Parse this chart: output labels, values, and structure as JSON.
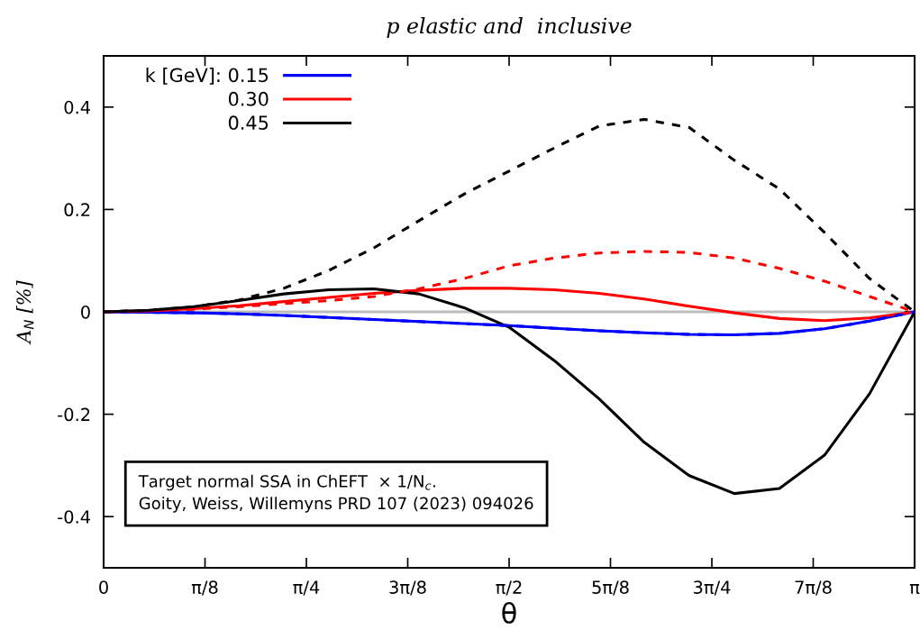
{
  "chart_data": {
    "type": "line",
    "title": "p elastic and  inclusive",
    "xlabel": "θ",
    "ylabel": "A$_{N}$ [%]",
    "x": [
      0,
      0.1745,
      0.3491,
      0.5236,
      0.6981,
      0.8727,
      1.0472,
      1.2217,
      1.3963,
      1.5708,
      1.7453,
      1.9199,
      2.0944,
      2.2689,
      2.4435,
      2.618,
      2.7925,
      2.9671,
      3.1416
    ],
    "series": [
      {
        "name": "k [GeV]: 0.15",
        "color": "#0000ff",
        "line_style": "solid",
        "values": [
          0,
          -0.001,
          -0.002,
          -0.004,
          -0.007,
          -0.011,
          -0.015,
          -0.019,
          -0.023,
          -0.027,
          -0.032,
          -0.037,
          -0.041,
          -0.044,
          -0.045,
          -0.042,
          -0.033,
          -0.018,
          0
        ]
      },
      {
        "name": "0.30",
        "color": "#ff0000",
        "line_style": "solid",
        "values": [
          0,
          0.002,
          0.006,
          0.012,
          0.02,
          0.028,
          0.036,
          0.042,
          0.046,
          0.046,
          0.043,
          0.036,
          0.025,
          0.011,
          -0.002,
          -0.013,
          -0.017,
          -0.012,
          0
        ]
      },
      {
        "name": "0.45",
        "color": "#000000",
        "line_style": "solid",
        "values": [
          0,
          0.003,
          0.01,
          0.022,
          0.035,
          0.043,
          0.045,
          0.035,
          0.008,
          -0.03,
          -0.095,
          -0.17,
          -0.255,
          -0.32,
          -0.355,
          -0.345,
          -0.28,
          -0.16,
          0
        ]
      },
      {
        "color": "#0000ff",
        "line_style": "dashed",
        "values": [
          0,
          -0.001,
          -0.002,
          -0.004,
          -0.007,
          -0.011,
          -0.015,
          -0.019,
          -0.023,
          -0.027,
          -0.032,
          -0.037,
          -0.041,
          -0.044,
          -0.045,
          -0.042,
          -0.033,
          -0.018,
          0
        ]
      },
      {
        "color": "#ff0000",
        "line_style": "dashed",
        "values": [
          0,
          0.002,
          0.005,
          0.01,
          0.016,
          0.022,
          0.03,
          0.045,
          0.065,
          0.09,
          0.105,
          0.115,
          0.118,
          0.116,
          0.105,
          0.085,
          0.06,
          0.03,
          0
        ]
      },
      {
        "color": "#000000",
        "line_style": "dashed",
        "values": [
          0,
          0.003,
          0.01,
          0.023,
          0.046,
          0.081,
          0.125,
          0.178,
          0.23,
          0.275,
          0.32,
          0.363,
          0.376,
          0.36,
          0.296,
          0.24,
          0.155,
          0.065,
          0
        ]
      }
    ],
    "xlim": [
      0,
      3.1416
    ],
    "xticks": [
      {
        "value": 0,
        "label": "0"
      },
      {
        "value": 0.3927,
        "label": "π/8"
      },
      {
        "value": 0.7854,
        "label": "π/4"
      },
      {
        "value": 1.1781,
        "label": "3π/8"
      },
      {
        "value": 1.5708,
        "label": "π/2"
      },
      {
        "value": 1.9635,
        "label": "5π/8"
      },
      {
        "value": 2.3562,
        "label": "3π/4"
      },
      {
        "value": 2.7489,
        "label": "7π/8"
      },
      {
        "value": 3.1416,
        "label": "π"
      }
    ],
    "ylim": [
      -0.5,
      0.5
    ],
    "yticks": [
      {
        "value": -0.4,
        "label": "-0.4"
      },
      {
        "value": -0.2,
        "label": "-0.2"
      },
      0,
      0.4,
      0.2
    ],
    "ref_lines": [
      {
        "axis": "y",
        "value": 0,
        "color": "#bbbbbb"
      }
    ],
    "annotations": [
      "Target normal SSA in ChEFT  × 1/N$_{c}$.",
      "Goity, Weiss, Willemyns PRD 107 (2023) 094026"
    ],
    "legend": "top left",
    "grid": false
  }
}
